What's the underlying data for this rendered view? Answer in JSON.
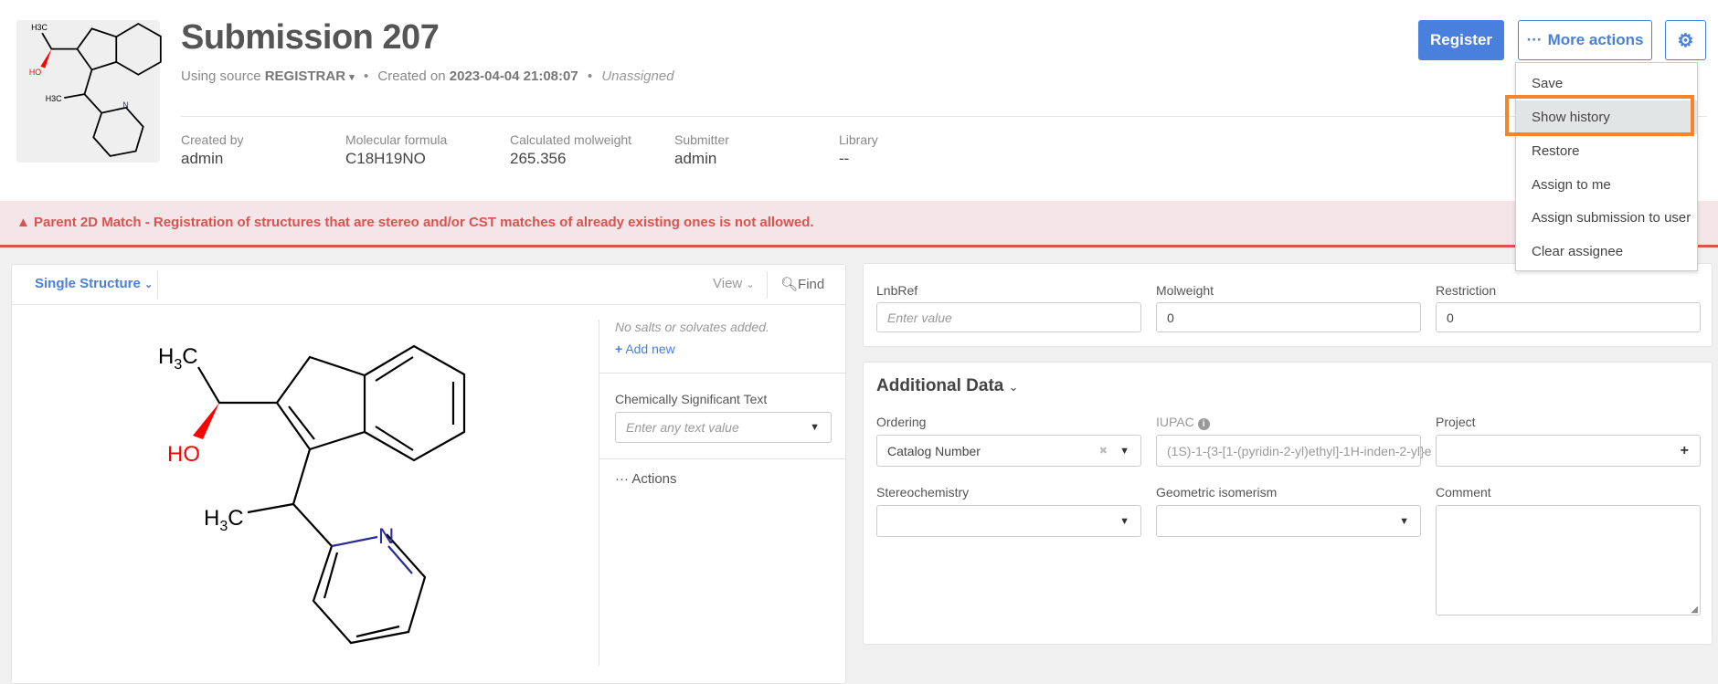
{
  "header": {
    "title": "Submission 207",
    "source_prefix": "Using source",
    "source": "REGISTRAR",
    "created_prefix": "Created on",
    "created_on": "2023-04-04 21:08:07",
    "assignee": "Unassigned",
    "meta": [
      {
        "label": "Created by",
        "value": "admin"
      },
      {
        "label": "Molecular formula",
        "value": "C18H19NO"
      },
      {
        "label": "Calculated molweight",
        "value": "265.356"
      },
      {
        "label": "Submitter",
        "value": "admin"
      },
      {
        "label": "Library",
        "value": "--"
      }
    ],
    "register_label": "Register",
    "more_actions_label": "More actions"
  },
  "menu": {
    "items": [
      "Save",
      "Show history",
      "Restore",
      "Assign to me",
      "Assign submission to user",
      "Clear assignee"
    ],
    "highlighted": "Show history",
    "highlight_color": "#f5842a"
  },
  "banner": {
    "text": "Parent 2D Match - Registration of structures that are stereo and/or CST matches of already existing ones is not allowed.",
    "color": "#d9534f"
  },
  "structure": {
    "mode": "Single Structure",
    "view": "View",
    "find": "Find",
    "labels": {
      "ch3_top": "H3C",
      "ho": "HO",
      "ch3_bottom": "H3C",
      "n": "N"
    },
    "no_salts": "No salts or solvates added.",
    "add_new": "Add new",
    "cst_label": "Chemically Significant Text",
    "cst_placeholder": "Enter any text value",
    "actions": "Actions"
  },
  "fields": {
    "lnbref": {
      "label": "LnbRef",
      "placeholder": "Enter value"
    },
    "molweight": {
      "label": "Molweight",
      "value": "0"
    },
    "restriction": {
      "label": "Restriction",
      "value": "0"
    }
  },
  "additional": {
    "title": "Additional Data",
    "ordering": {
      "label": "Ordering",
      "value": "Catalog Number"
    },
    "iupac": {
      "label": "IUPAC",
      "value": "(1S)-1-{3-[1-(pyridin-2-yl)ethyl]-1H-inden-2-yl}e"
    },
    "project": {
      "label": "Project",
      "value": ""
    },
    "stereochemistry": {
      "label": "Stereochemistry",
      "value": ""
    },
    "geometric": {
      "label": "Geometric isomerism",
      "value": ""
    },
    "comment": {
      "label": "Comment",
      "value": ""
    }
  },
  "colors": {
    "accent": "#4a80dd",
    "error": "#d9534f"
  }
}
